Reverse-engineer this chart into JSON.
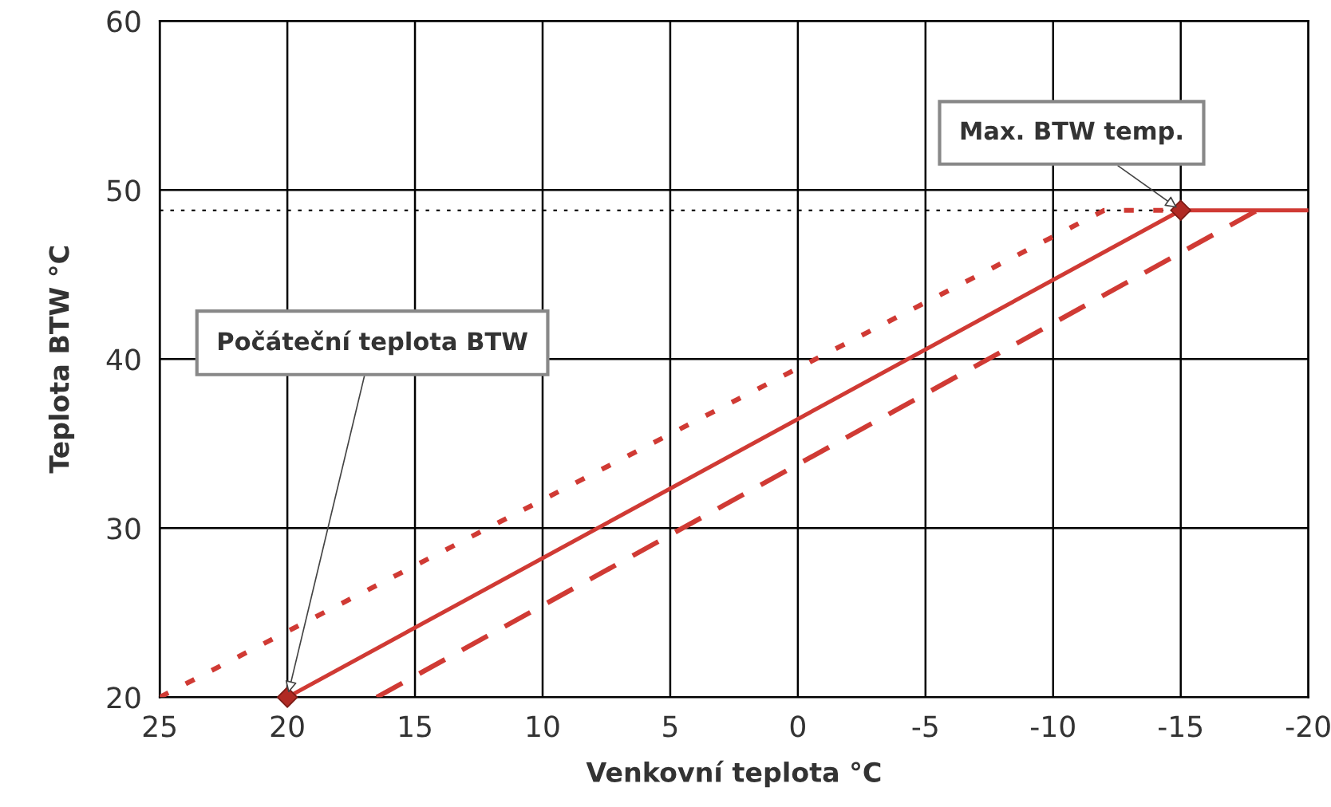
{
  "chart_data": {
    "type": "line",
    "xlabel": "Venkovní teplota °C",
    "ylabel": "Teplota BTW °C",
    "xlim": [
      25,
      -20
    ],
    "xticks": [
      25,
      20,
      15,
      10,
      5,
      0,
      -5,
      -10,
      -15,
      -20
    ],
    "ylim": [
      20,
      60
    ],
    "yticks": [
      20,
      30,
      40,
      50,
      60
    ],
    "grid": true,
    "series": [
      {
        "color": "#d03a34",
        "line_style": "solid",
        "x": [
          20,
          -15,
          -20
        ],
        "values": [
          20,
          48.8,
          48.8
        ]
      },
      {
        "color": "#d03a34",
        "line_style": "dotted",
        "x": [
          25,
          -12,
          -15
        ],
        "values": [
          20,
          48.8,
          48.8
        ]
      },
      {
        "color": "#d03a34",
        "line_style": "dashed",
        "x": [
          16.5,
          -18
        ],
        "values": [
          20,
          48.8
        ]
      },
      {
        "type": "scatter",
        "marker": "diamond",
        "color": "#b02a24",
        "x": [
          20,
          -15
        ],
        "values": [
          20,
          48.8
        ]
      }
    ],
    "ref_lines": [
      {
        "axis": "y",
        "value": 48.8,
        "color": "#000000",
        "line_style": "dotted"
      }
    ],
    "annotations": [
      {
        "text": "Max. BTW temp.",
        "x": -15,
        "y": 48.8
      },
      {
        "text": "Počáteční teplota BTW",
        "x": 20,
        "y": 20
      }
    ]
  }
}
